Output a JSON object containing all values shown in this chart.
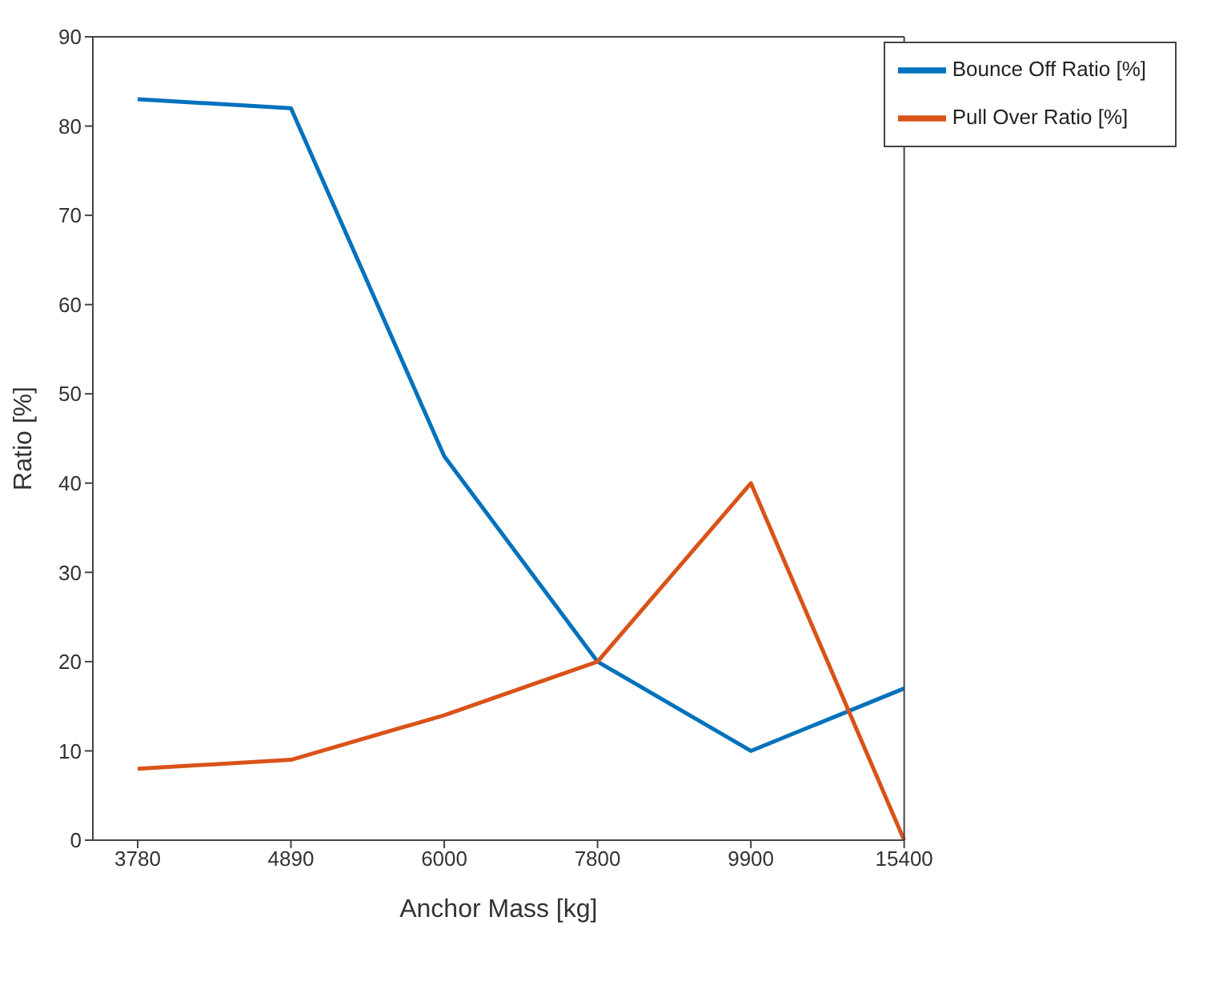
{
  "chart_data": {
    "type": "line",
    "xlabel": "Anchor Mass [kg]",
    "ylabel": "Ratio [%]",
    "categories": [
      "3780",
      "4890",
      "6000",
      "7800",
      "9900",
      "15400"
    ],
    "series": [
      {
        "name": "Bounce Off Ratio [%]",
        "color": "#0072bd",
        "values": [
          83,
          82,
          43,
          20,
          10,
          17
        ]
      },
      {
        "name": "Pull Over Ratio [%]",
        "color": "#d95319",
        "values": [
          8,
          9,
          14,
          20,
          40,
          0
        ]
      }
    ],
    "ylim": [
      0,
      90
    ],
    "yticks": [
      0,
      10,
      20,
      30,
      40,
      50,
      60,
      70,
      80,
      90
    ],
    "grid": false,
    "legend": "top right",
    "marker": "none",
    "line_style": "solid"
  }
}
